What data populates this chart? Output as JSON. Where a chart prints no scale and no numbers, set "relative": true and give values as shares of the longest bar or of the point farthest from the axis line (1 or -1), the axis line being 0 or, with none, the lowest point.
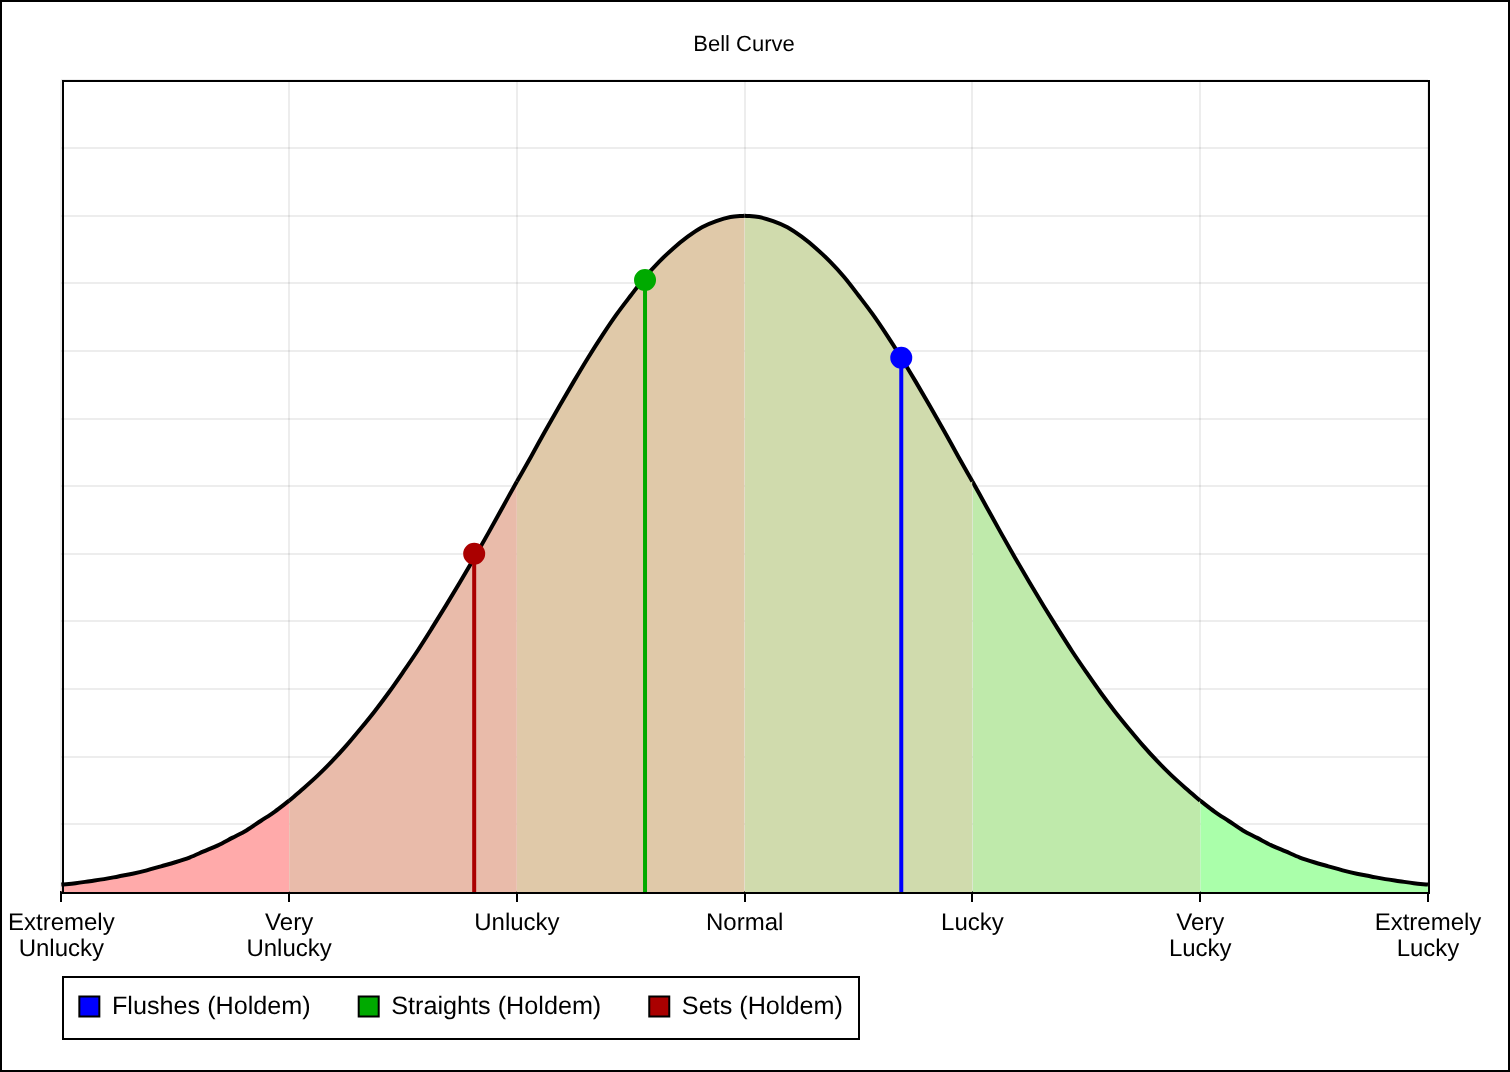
{
  "chart_data": {
    "type": "area",
    "title": "Bell Curve",
    "relative": true,
    "categories": [
      "Extremely Unlucky",
      null,
      null,
      null,
      null,
      null,
      null,
      null,
      null,
      null,
      null,
      null,
      null,
      null,
      null,
      null,
      "Very Unlucky",
      null,
      null,
      null,
      null,
      null,
      null,
      null,
      null,
      null,
      null,
      null,
      null,
      null,
      null,
      null,
      "Unlucky",
      null,
      null,
      null,
      null,
      null,
      null,
      null,
      null,
      null,
      null,
      null,
      null,
      null,
      null,
      null,
      "Normal",
      null,
      null,
      null,
      null,
      null,
      null,
      null,
      null,
      null,
      null,
      null,
      null,
      null,
      null,
      null,
      "Lucky",
      null,
      null,
      null,
      null,
      null,
      null,
      null,
      null,
      null,
      null,
      null,
      null,
      null,
      null,
      null,
      "Very Lucky",
      null,
      null,
      null,
      null,
      null,
      null,
      null,
      null,
      null,
      null,
      null,
      null,
      null,
      null,
      null,
      "Extremely Lucky"
    ],
    "grid": true,
    "legend": "bottom left",
    "series": [
      {
        "color": "#ffaaaa",
        "values": [
          0.011,
          0.013,
          0.016,
          0.019,
          0.023,
          0.027,
          0.032,
          0.038,
          0.044,
          0.051,
          0.06,
          0.069,
          0.08,
          0.091,
          0.105,
          0.119,
          0.135,
          null,
          null,
          null,
          null,
          null,
          null,
          null,
          null,
          null,
          null,
          null,
          null,
          null,
          null,
          null,
          null,
          null,
          null,
          null,
          null,
          null,
          null,
          null,
          null,
          null,
          null,
          null,
          null,
          null,
          null,
          null,
          null,
          null,
          null,
          null,
          null,
          null,
          null,
          null,
          null,
          null,
          null,
          null,
          null,
          null,
          null,
          null,
          null,
          null,
          null,
          null,
          null,
          null,
          null,
          null,
          null,
          null,
          null,
          null,
          null,
          null,
          null,
          null,
          null,
          null,
          null,
          null,
          null,
          null,
          null,
          null,
          null,
          null,
          null,
          null,
          null,
          null,
          null,
          null,
          null
        ]
      },
      {
        "color": "#e9bbaa",
        "values": [
          null,
          null,
          null,
          null,
          null,
          null,
          null,
          null,
          null,
          null,
          null,
          null,
          null,
          null,
          null,
          null,
          0.135,
          0.153,
          0.172,
          0.193,
          0.216,
          0.241,
          0.267,
          0.295,
          0.325,
          0.356,
          0.389,
          0.423,
          0.458,
          0.494,
          0.531,
          0.569,
          0.607,
          null,
          null,
          null,
          null,
          null,
          null,
          null,
          null,
          null,
          null,
          null,
          null,
          null,
          null,
          null,
          null,
          null,
          null,
          null,
          null,
          null,
          null,
          null,
          null,
          null,
          null,
          null,
          null,
          null,
          null,
          null,
          null,
          null,
          null,
          null,
          null,
          null,
          null,
          null,
          null,
          null,
          null,
          null,
          null,
          null,
          null,
          null,
          null,
          null,
          null,
          null,
          null,
          null,
          null,
          null,
          null,
          null,
          null,
          null,
          null,
          null,
          null,
          null,
          null
        ]
      },
      {
        "color": "#e0c9a9",
        "values": [
          null,
          null,
          null,
          null,
          null,
          null,
          null,
          null,
          null,
          null,
          null,
          null,
          null,
          null,
          null,
          null,
          null,
          null,
          null,
          null,
          null,
          null,
          null,
          null,
          null,
          null,
          null,
          null,
          null,
          null,
          null,
          null,
          0.607,
          0.644,
          0.682,
          0.719,
          0.755,
          0.79,
          0.823,
          0.854,
          0.882,
          0.909,
          0.932,
          0.952,
          0.969,
          0.983,
          0.992,
          0.998,
          1,
          null,
          null,
          null,
          null,
          null,
          null,
          null,
          null,
          null,
          null,
          null,
          null,
          null,
          null,
          null,
          null,
          null,
          null,
          null,
          null,
          null,
          null,
          null,
          null,
          null,
          null,
          null,
          null,
          null,
          null,
          null,
          null,
          null,
          null,
          null,
          null,
          null,
          null,
          null,
          null,
          null,
          null,
          null,
          null,
          null,
          null,
          null,
          null
        ]
      },
      {
        "color": "#d0dbad",
        "values": [
          null,
          null,
          null,
          null,
          null,
          null,
          null,
          null,
          null,
          null,
          null,
          null,
          null,
          null,
          null,
          null,
          null,
          null,
          null,
          null,
          null,
          null,
          null,
          null,
          null,
          null,
          null,
          null,
          null,
          null,
          null,
          null,
          null,
          null,
          null,
          null,
          null,
          null,
          null,
          null,
          null,
          null,
          null,
          null,
          null,
          null,
          null,
          null,
          1,
          0.998,
          0.992,
          0.983,
          0.969,
          0.952,
          0.932,
          0.909,
          0.882,
          0.854,
          0.823,
          0.79,
          0.755,
          0.719,
          0.682,
          0.644,
          0.607,
          null,
          null,
          null,
          null,
          null,
          null,
          null,
          null,
          null,
          null,
          null,
          null,
          null,
          null,
          null,
          null,
          null,
          null,
          null,
          null,
          null,
          null,
          null,
          null,
          null,
          null,
          null,
          null,
          null,
          null,
          null,
          null
        ]
      },
      {
        "color": "#bfeaab",
        "values": [
          null,
          null,
          null,
          null,
          null,
          null,
          null,
          null,
          null,
          null,
          null,
          null,
          null,
          null,
          null,
          null,
          null,
          null,
          null,
          null,
          null,
          null,
          null,
          null,
          null,
          null,
          null,
          null,
          null,
          null,
          null,
          null,
          null,
          null,
          null,
          null,
          null,
          null,
          null,
          null,
          null,
          null,
          null,
          null,
          null,
          null,
          null,
          null,
          null,
          null,
          null,
          null,
          null,
          null,
          null,
          null,
          null,
          null,
          null,
          null,
          null,
          null,
          null,
          null,
          0.607,
          0.569,
          0.531,
          0.494,
          0.458,
          0.423,
          0.389,
          0.356,
          0.325,
          0.295,
          0.267,
          0.241,
          0.216,
          0.193,
          0.172,
          0.153,
          0.135,
          null,
          null,
          null,
          null,
          null,
          null,
          null,
          null,
          null,
          null,
          null,
          null,
          null,
          null,
          null,
          null
        ]
      },
      {
        "color": "#aaffaa",
        "values": [
          null,
          null,
          null,
          null,
          null,
          null,
          null,
          null,
          null,
          null,
          null,
          null,
          null,
          null,
          null,
          null,
          null,
          null,
          null,
          null,
          null,
          null,
          null,
          null,
          null,
          null,
          null,
          null,
          null,
          null,
          null,
          null,
          null,
          null,
          null,
          null,
          null,
          null,
          null,
          null,
          null,
          null,
          null,
          null,
          null,
          null,
          null,
          null,
          null,
          null,
          null,
          null,
          null,
          null,
          null,
          null,
          null,
          null,
          null,
          null,
          null,
          null,
          null,
          null,
          null,
          null,
          null,
          null,
          null,
          null,
          null,
          null,
          null,
          null,
          null,
          null,
          null,
          null,
          null,
          null,
          0.135,
          0.119,
          0.105,
          0.091,
          0.08,
          0.069,
          0.06,
          0.051,
          0.044,
          0.038,
          0.032,
          0.027,
          0.023,
          0.019,
          0.016,
          0.013,
          0.011
        ]
      },
      {
        "type": "lollipop",
        "name": "Flushes (Holdem)",
        "color": "#0000ff",
        "marker": "circle",
        "values": [
          null,
          null,
          null,
          null,
          null,
          null,
          null,
          null,
          null,
          null,
          null,
          null,
          null,
          null,
          null,
          null,
          null,
          null,
          null,
          null,
          null,
          null,
          null,
          null,
          null,
          null,
          null,
          null,
          null,
          null,
          null,
          null,
          null,
          null,
          null,
          null,
          null,
          null,
          null,
          null,
          null,
          null,
          null,
          null,
          null,
          null,
          null,
          null,
          null,
          null,
          null,
          null,
          null,
          null,
          null,
          null,
          null,
          null,
          null,
          0.79,
          null,
          null,
          null,
          null,
          null,
          null,
          null,
          null,
          null,
          null,
          null,
          null,
          null,
          null,
          null,
          null,
          null,
          null,
          null,
          null,
          null,
          null,
          null,
          null,
          null,
          null,
          null,
          null,
          null,
          null,
          null,
          null,
          null,
          null,
          null,
          null,
          null
        ]
      },
      {
        "type": "lollipop",
        "name": "Straights (Holdem)",
        "color": "#00aa00",
        "marker": "circle",
        "values": [
          null,
          null,
          null,
          null,
          null,
          null,
          null,
          null,
          null,
          null,
          null,
          null,
          null,
          null,
          null,
          null,
          null,
          null,
          null,
          null,
          null,
          null,
          null,
          null,
          null,
          null,
          null,
          null,
          null,
          null,
          null,
          null,
          null,
          null,
          null,
          null,
          null,
          null,
          null,
          null,
          null,
          0.905,
          null,
          null,
          null,
          null,
          null,
          null,
          null,
          null,
          null,
          null,
          null,
          null,
          null,
          null,
          null,
          null,
          null,
          null,
          null,
          null,
          null,
          null,
          null,
          null,
          null,
          null,
          null,
          null,
          null,
          null,
          null,
          null,
          null,
          null,
          null,
          null,
          null,
          null,
          null,
          null,
          null,
          null,
          null,
          null,
          null,
          null,
          null,
          null,
          null,
          null,
          null,
          null,
          null,
          null,
          null
        ]
      },
      {
        "type": "lollipop",
        "name": "Sets (Holdem)",
        "color": "#aa0000",
        "marker": "circle",
        "values": [
          null,
          null,
          null,
          null,
          null,
          null,
          null,
          null,
          null,
          null,
          null,
          null,
          null,
          null,
          null,
          null,
          null,
          null,
          null,
          null,
          null,
          null,
          null,
          null,
          null,
          null,
          null,
          null,
          null,
          0.5,
          null,
          null,
          null,
          null,
          null,
          null,
          null,
          null,
          null,
          null,
          null,
          null,
          null,
          null,
          null,
          null,
          null,
          null,
          null,
          null,
          null,
          null,
          null,
          null,
          null,
          null,
          null,
          null,
          null,
          null,
          null,
          null,
          null,
          null,
          null,
          null,
          null,
          null,
          null,
          null,
          null,
          null,
          null,
          null,
          null,
          null,
          null,
          null,
          null,
          null,
          null,
          null,
          null,
          null,
          null,
          null,
          null,
          null,
          null,
          null,
          null,
          null,
          null,
          null,
          null,
          null,
          null
        ]
      }
    ]
  }
}
